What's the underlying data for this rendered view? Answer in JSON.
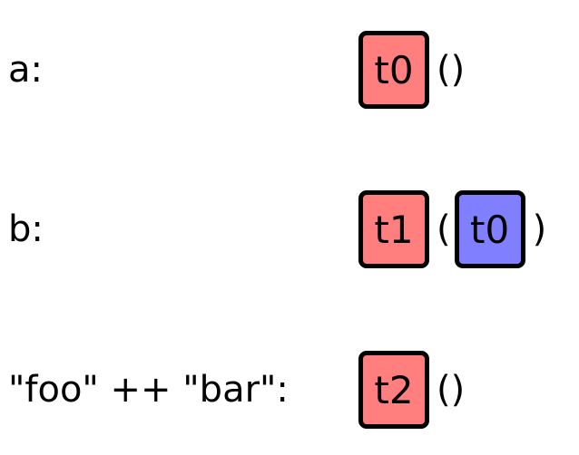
{
  "colors": {
    "constructor_box": "#ff7f7f",
    "argument_box": "#7f7fff",
    "border": "#000000"
  },
  "rows": [
    {
      "label": "a:",
      "constructor": "t0",
      "empty_parens": "()"
    },
    {
      "label": "b:",
      "constructor": "t1",
      "open_paren": "(",
      "argument": "t0",
      "close_paren": ")"
    },
    {
      "label": "\"foo\" ++ \"bar\":",
      "constructor": "t2",
      "empty_parens": "()"
    }
  ]
}
